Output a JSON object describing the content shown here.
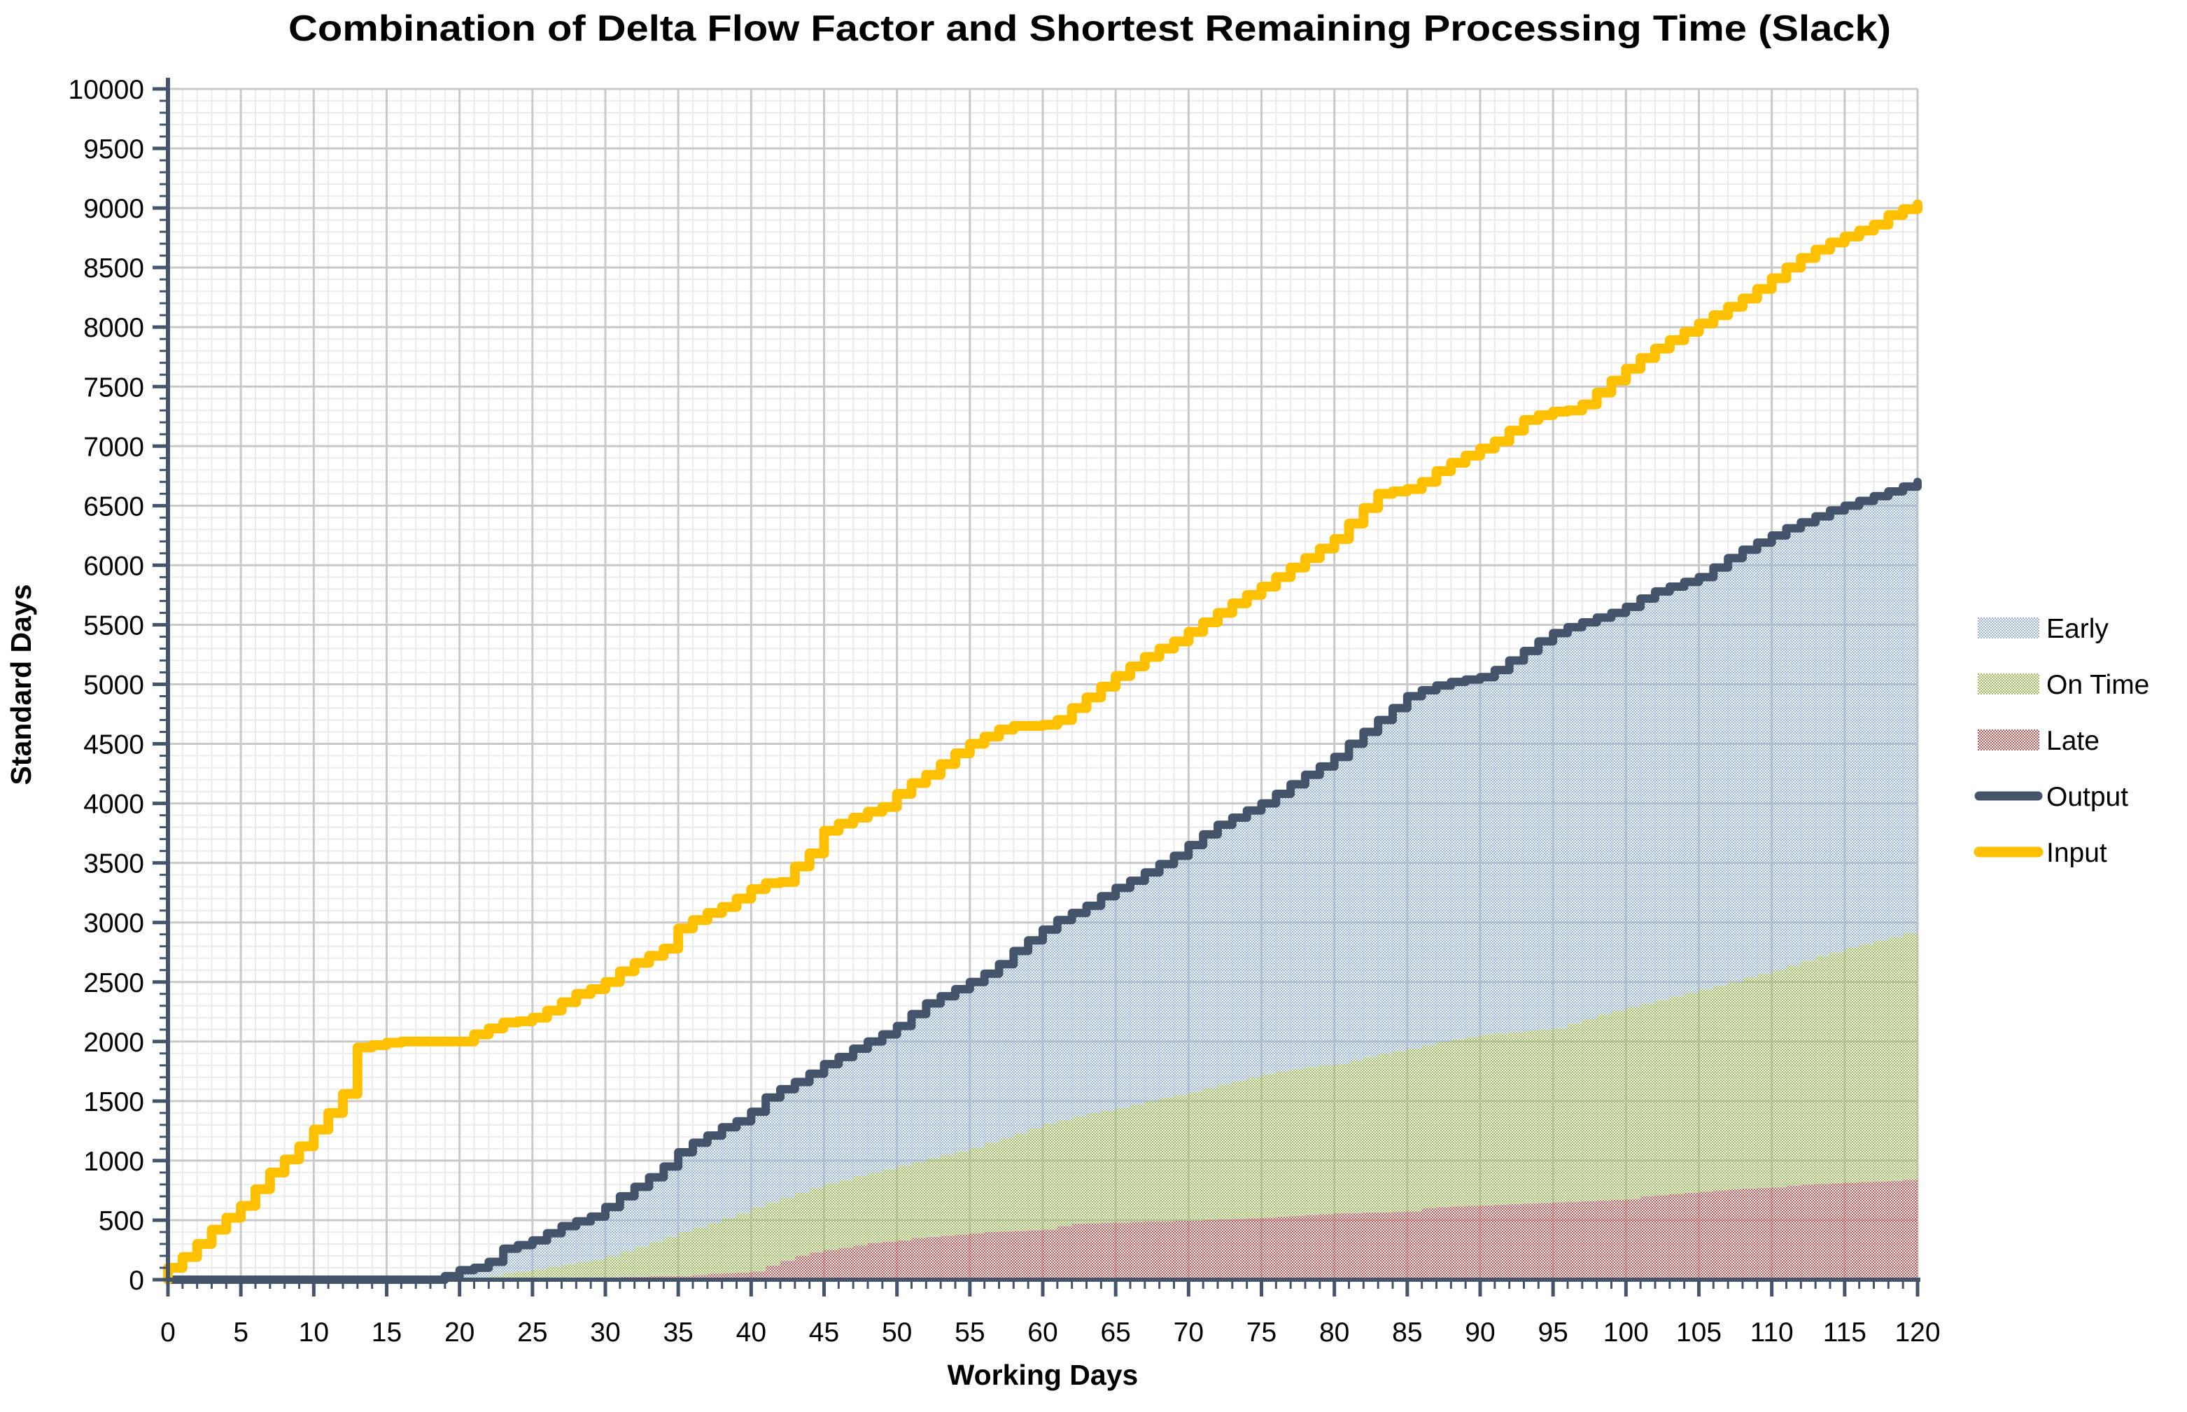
{
  "title": "Combination of Delta Flow Factor and Shortest Remaining Processing Time (Slack)",
  "axes": {
    "x": {
      "label": "Working Days",
      "min": 0,
      "max": 120,
      "major_tick_interval": 5,
      "minor_tick_interval": 1,
      "tick_labels": [
        0,
        5,
        10,
        15,
        20,
        25,
        30,
        35,
        40,
        45,
        50,
        55,
        60,
        65,
        70,
        75,
        80,
        85,
        90,
        95,
        100,
        105,
        110,
        115,
        120
      ]
    },
    "y": {
      "label": "Standard Days",
      "min": 0,
      "max": 10000,
      "major_tick_interval": 500,
      "minor_tick_interval": 100,
      "tick_labels": [
        0,
        500,
        1000,
        1500,
        2000,
        2500,
        3000,
        3500,
        4000,
        4500,
        5000,
        5500,
        6000,
        6500,
        7000,
        7500,
        8000,
        8500,
        9000,
        9500,
        10000
      ]
    }
  },
  "legend": {
    "items": [
      {
        "label": "Early",
        "swatch": "area",
        "color": "#95B3D7"
      },
      {
        "label": "On Time",
        "swatch": "area",
        "color": "#9BBB59"
      },
      {
        "label": "Late",
        "swatch": "area",
        "color": "#C0504D"
      },
      {
        "label": "Output",
        "swatch": "line",
        "color": "#44546A"
      },
      {
        "label": "Input",
        "swatch": "line",
        "color": "#FFC000"
      }
    ]
  },
  "colors": {
    "background": "#FFFFFF",
    "axis": "#44546A",
    "grid_major": "#C9C9C9",
    "grid_minor": "#EBEBEB",
    "early_fill": "#95B3D7",
    "on_time_fill": "#9BBB59",
    "late_fill": "#C0504D",
    "output_line": "#44546A",
    "input_line": "#FFC000",
    "text": "#000000"
  },
  "chart_data": {
    "type": "area",
    "subtype": "stacked-step-areas-with-step-lines",
    "title": "Combination of Delta Flow Factor and Shortest Remaining Processing Time (Slack)",
    "xlabel": "Working Days",
    "ylabel": "Standard Days",
    "xlim": [
      0,
      120
    ],
    "ylim": [
      0,
      10000
    ],
    "grid": true,
    "legend_position": "right",
    "x": [
      0,
      1,
      2,
      3,
      4,
      5,
      6,
      7,
      8,
      9,
      10,
      11,
      12,
      13,
      14,
      15,
      16,
      17,
      18,
      19,
      20,
      21,
      22,
      23,
      24,
      25,
      26,
      27,
      28,
      29,
      30,
      31,
      32,
      33,
      34,
      35,
      36,
      37,
      38,
      39,
      40,
      41,
      42,
      43,
      44,
      45,
      46,
      47,
      48,
      49,
      50,
      51,
      52,
      53,
      54,
      55,
      56,
      57,
      58,
      59,
      60,
      61,
      62,
      63,
      64,
      65,
      66,
      67,
      68,
      69,
      70,
      71,
      72,
      73,
      74,
      75,
      76,
      77,
      78,
      79,
      80,
      81,
      82,
      83,
      84,
      85,
      86,
      87,
      88,
      89,
      90,
      91,
      92,
      93,
      94,
      95,
      96,
      97,
      98,
      99,
      100,
      101,
      102,
      103,
      104,
      105,
      106,
      107,
      108,
      109,
      110,
      111,
      112,
      113,
      114,
      115,
      116,
      117,
      118,
      119,
      120
    ],
    "series": [
      {
        "name": "Late",
        "plot": "stacked_area",
        "stack_order": 1,
        "color": "#C0504D",
        "values": [
          0,
          0,
          0,
          0,
          0,
          0,
          0,
          0,
          0,
          0,
          0,
          0,
          0,
          0,
          0,
          0,
          0,
          0,
          0,
          0,
          0,
          0,
          0,
          0,
          0,
          0,
          10,
          15,
          20,
          20,
          20,
          25,
          25,
          30,
          30,
          30,
          40,
          50,
          55,
          60,
          70,
          120,
          160,
          200,
          230,
          250,
          270,
          290,
          310,
          320,
          330,
          350,
          360,
          370,
          380,
          390,
          400,
          405,
          410,
          415,
          420,
          450,
          470,
          475,
          480,
          480,
          485,
          490,
          490,
          495,
          495,
          500,
          505,
          510,
          515,
          520,
          530,
          535,
          545,
          550,
          560,
          560,
          565,
          565,
          570,
          575,
          600,
          610,
          615,
          620,
          625,
          630,
          635,
          640,
          645,
          650,
          655,
          660,
          665,
          670,
          675,
          700,
          710,
          720,
          730,
          740,
          750,
          760,
          765,
          770,
          775,
          790,
          800,
          805,
          810,
          815,
          820,
          825,
          830,
          840,
          850
        ]
      },
      {
        "name": "On Time",
        "plot": "stacked_area",
        "stack_order": 2,
        "color": "#9BBB59",
        "values": [
          0,
          0,
          0,
          0,
          0,
          0,
          0,
          0,
          0,
          0,
          0,
          0,
          0,
          0,
          0,
          0,
          0,
          0,
          0,
          0,
          0,
          0,
          30,
          60,
          70,
          90,
          100,
          115,
          130,
          150,
          180,
          215,
          255,
          290,
          330,
          370,
          400,
          430,
          465,
          500,
          540,
          530,
          530,
          530,
          540,
          560,
          570,
          580,
          590,
          610,
          630,
          640,
          660,
          680,
          700,
          720,
          750,
          785,
          820,
          855,
          890,
          890,
          900,
          925,
          940,
          960,
          985,
          1010,
          1040,
          1055,
          1085,
          1110,
          1135,
          1160,
          1185,
          1210,
          1220,
          1235,
          1245,
          1250,
          1250,
          1280,
          1305,
          1335,
          1350,
          1365,
          1370,
          1390,
          1405,
          1420,
          1435,
          1440,
          1445,
          1450,
          1455,
          1460,
          1495,
          1530,
          1565,
          1590,
          1615,
          1620,
          1640,
          1660,
          1680,
          1700,
          1720,
          1740,
          1775,
          1800,
          1825,
          1850,
          1880,
          1915,
          1940,
          1975,
          2000,
          2025,
          2050,
          2070,
          2100
        ]
      },
      {
        "name": "Early",
        "plot": "stacked_area",
        "stack_order": 3,
        "color": "#95B3D7",
        "values": [
          0,
          0,
          0,
          0,
          0,
          0,
          0,
          0,
          0,
          0,
          0,
          0,
          0,
          0,
          0,
          0,
          0,
          0,
          0,
          30,
          80,
          100,
          120,
          200,
          220,
          240,
          280,
          320,
          340,
          360,
          410,
          460,
          500,
          540,
          590,
          670,
          710,
          730,
          760,
          770,
          800,
          880,
          910,
          930,
          960,
          1000,
          1030,
          1070,
          1100,
          1130,
          1170,
          1240,
          1300,
          1330,
          1360,
          1390,
          1420,
          1460,
          1530,
          1580,
          1630,
          1680,
          1710,
          1740,
          1800,
          1850,
          1880,
          1920,
          1960,
          2010,
          2070,
          2130,
          2180,
          2210,
          2240,
          2270,
          2330,
          2390,
          2450,
          2510,
          2580,
          2660,
          2730,
          2800,
          2880,
          2960,
          2980,
          2990,
          3000,
          3000,
          3000,
          3050,
          3120,
          3190,
          3260,
          3320,
          3330,
          3330,
          3330,
          3340,
          3360,
          3400,
          3430,
          3440,
          3450,
          3460,
          3510,
          3560,
          3590,
          3620,
          3650,
          3670,
          3680,
          3690,
          3710,
          3710,
          3720,
          3730,
          3740,
          3750,
          3750
        ]
      },
      {
        "name": "Output",
        "plot": "step_line",
        "color": "#44546A",
        "values": [
          0,
          0,
          0,
          0,
          0,
          0,
          0,
          0,
          0,
          0,
          0,
          0,
          0,
          0,
          0,
          0,
          0,
          0,
          0,
          30,
          80,
          100,
          150,
          260,
          290,
          330,
          390,
          450,
          490,
          530,
          610,
          700,
          780,
          860,
          950,
          1070,
          1150,
          1210,
          1280,
          1330,
          1410,
          1530,
          1600,
          1660,
          1730,
          1810,
          1870,
          1940,
          2000,
          2060,
          2130,
          2230,
          2320,
          2380,
          2440,
          2500,
          2570,
          2650,
          2760,
          2850,
          2940,
          3020,
          3080,
          3140,
          3220,
          3290,
          3350,
          3420,
          3490,
          3560,
          3650,
          3740,
          3820,
          3880,
          3940,
          4000,
          4080,
          4160,
          4240,
          4310,
          4390,
          4500,
          4600,
          4700,
          4800,
          4900,
          4950,
          4990,
          5020,
          5040,
          5060,
          5120,
          5200,
          5280,
          5360,
          5430,
          5480,
          5520,
          5560,
          5600,
          5650,
          5720,
          5780,
          5820,
          5860,
          5900,
          5980,
          6060,
          6130,
          6190,
          6250,
          6310,
          6360,
          6410,
          6460,
          6500,
          6540,
          6580,
          6620,
          6660,
          6700
        ]
      },
      {
        "name": "Input",
        "plot": "step_line",
        "color": "#FFC000",
        "values": [
          100,
          190,
          300,
          420,
          520,
          620,
          760,
          900,
          1010,
          1120,
          1260,
          1400,
          1560,
          1950,
          1970,
          1990,
          2000,
          2000,
          2000,
          2000,
          2000,
          2060,
          2110,
          2160,
          2170,
          2200,
          2260,
          2330,
          2400,
          2440,
          2500,
          2590,
          2660,
          2720,
          2780,
          2950,
          3020,
          3080,
          3130,
          3200,
          3280,
          3330,
          3340,
          3470,
          3580,
          3770,
          3830,
          3880,
          3930,
          3970,
          4080,
          4170,
          4240,
          4330,
          4420,
          4500,
          4560,
          4620,
          4650,
          4650,
          4660,
          4700,
          4800,
          4890,
          4980,
          5070,
          5150,
          5230,
          5300,
          5360,
          5440,
          5520,
          5600,
          5680,
          5750,
          5820,
          5900,
          5980,
          6060,
          6140,
          6220,
          6350,
          6480,
          6600,
          6620,
          6640,
          6700,
          6790,
          6860,
          6920,
          6980,
          7040,
          7130,
          7220,
          7260,
          7290,
          7300,
          7350,
          7450,
          7550,
          7650,
          7740,
          7820,
          7890,
          7960,
          8030,
          8100,
          8170,
          8240,
          8320,
          8410,
          8500,
          8580,
          8650,
          8710,
          8760,
          8810,
          8860,
          8940,
          8990,
          9030
        ]
      }
    ],
    "note": "Stacked area values are cumulative standard days per category; Output step line equals Late+On Time+Early; Input is cumulative incoming work."
  }
}
